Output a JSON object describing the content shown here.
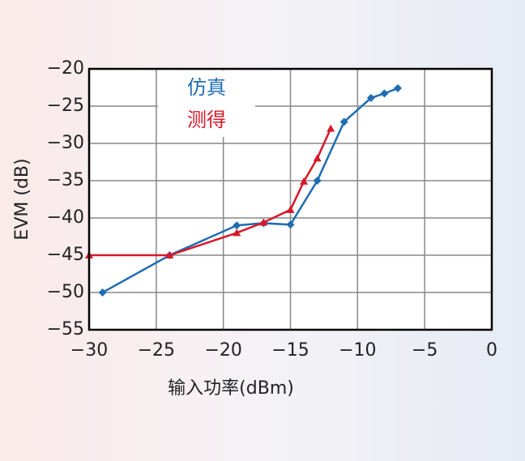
{
  "chart_data": {
    "type": "line",
    "xlabel": "输入功率(dBm)",
    "ylabel": "EVM (dB)",
    "xlim": [
      -30,
      0
    ],
    "ylim": [
      -55,
      -20
    ],
    "xticks": [
      {
        "value": -30,
        "label": "−30"
      },
      {
        "value": -25,
        "label": "−25"
      },
      {
        "value": -20,
        "label": "−20"
      },
      {
        "value": -15,
        "label": "−15"
      },
      {
        "value": -10,
        "label": "−10"
      },
      {
        "value": -5,
        "label": "−5"
      },
      0
    ],
    "yticks": [
      {
        "value": -55,
        "label": "−55"
      },
      {
        "value": -50,
        "label": "−50"
      },
      {
        "value": -45,
        "label": "−45"
      },
      {
        "value": -40,
        "label": "−40"
      },
      {
        "value": -35,
        "label": "−35"
      },
      {
        "value": -30,
        "label": "−30"
      },
      {
        "value": -25,
        "label": "−25"
      },
      {
        "value": -20,
        "label": "−20"
      }
    ],
    "grid": true,
    "legend": "upper left",
    "series": [
      {
        "name": "仿真",
        "color": "#1f6db3",
        "marker": "diamond",
        "x": [
          -29,
          -24,
          -19,
          -17,
          -15,
          -13,
          -11,
          -9,
          -8,
          -7
        ],
        "values": [
          -50,
          -45,
          -41,
          -40.7,
          -40.9,
          -35,
          -27.1,
          -23.9,
          -23.3,
          -22.6
        ]
      },
      {
        "name": "测得",
        "color": "#d6182a",
        "marker": "triangle",
        "x": [
          -30,
          -24,
          -19,
          -17,
          -15,
          -14,
          -13,
          -12
        ],
        "values": [
          -45,
          -45,
          -42,
          -40.6,
          -38.9,
          -35.1,
          -32,
          -28
        ]
      }
    ]
  }
}
